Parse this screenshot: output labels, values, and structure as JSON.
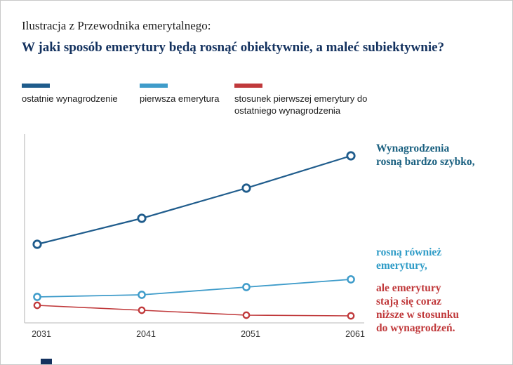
{
  "page": {
    "kicker": "Ilustracja z Przewodnika emerytalnego:",
    "title": "W jaki sposób emerytury będą rosnąć obiektywnie, a maleć subiektywnie?"
  },
  "legend": {
    "items": [
      {
        "label": "ostatnie wynagrodzenie",
        "color": "#1f5c8c"
      },
      {
        "label": "pierwsza emerytura",
        "color": "#3f9cca"
      },
      {
        "label": "stosunek pierwszej emerytury do ostatniego wynagrodzenia",
        "color": "#c0393b"
      }
    ]
  },
  "annotations": [
    {
      "text": "Wynagrodzenia\nrosną bardzo szybko,",
      "color": "#1a6080"
    },
    {
      "text": "rosną również\nemerytury,",
      "color": "#2f9cc7"
    },
    {
      "text": "ale emerytury\nstają się coraz\nniższe w stosunku\ndo wynagrodzeń.",
      "color": "#c0393b"
    }
  ],
  "chart_data": {
    "type": "line",
    "x": [
      "2031",
      "2041",
      "2051",
      "2061"
    ],
    "series": [
      {
        "name": "ostatnie wynagrodzenie",
        "color": "#1f5c8c",
        "values": [
          112,
          149,
          192,
          238
        ]
      },
      {
        "name": "pierwsza emerytura",
        "color": "#3f9cca",
        "values": [
          37,
          40,
          51,
          62
        ]
      },
      {
        "name": "stosunek pierwszej emerytury do ostatniego wynagrodzenia",
        "color": "#c0393b",
        "values": [
          25,
          18,
          11,
          10
        ]
      }
    ],
    "title": "W jaki sposób emerytury będą rosnąć obiektywnie, a maleć subiektywnie?",
    "xlabel": "",
    "ylabel": "",
    "ylim": [
      0,
      260
    ],
    "units": "relative values (estimated from plot; no y-axis scale shown)",
    "grid": false,
    "legend_position": "top",
    "marker_style": "open-circle"
  }
}
